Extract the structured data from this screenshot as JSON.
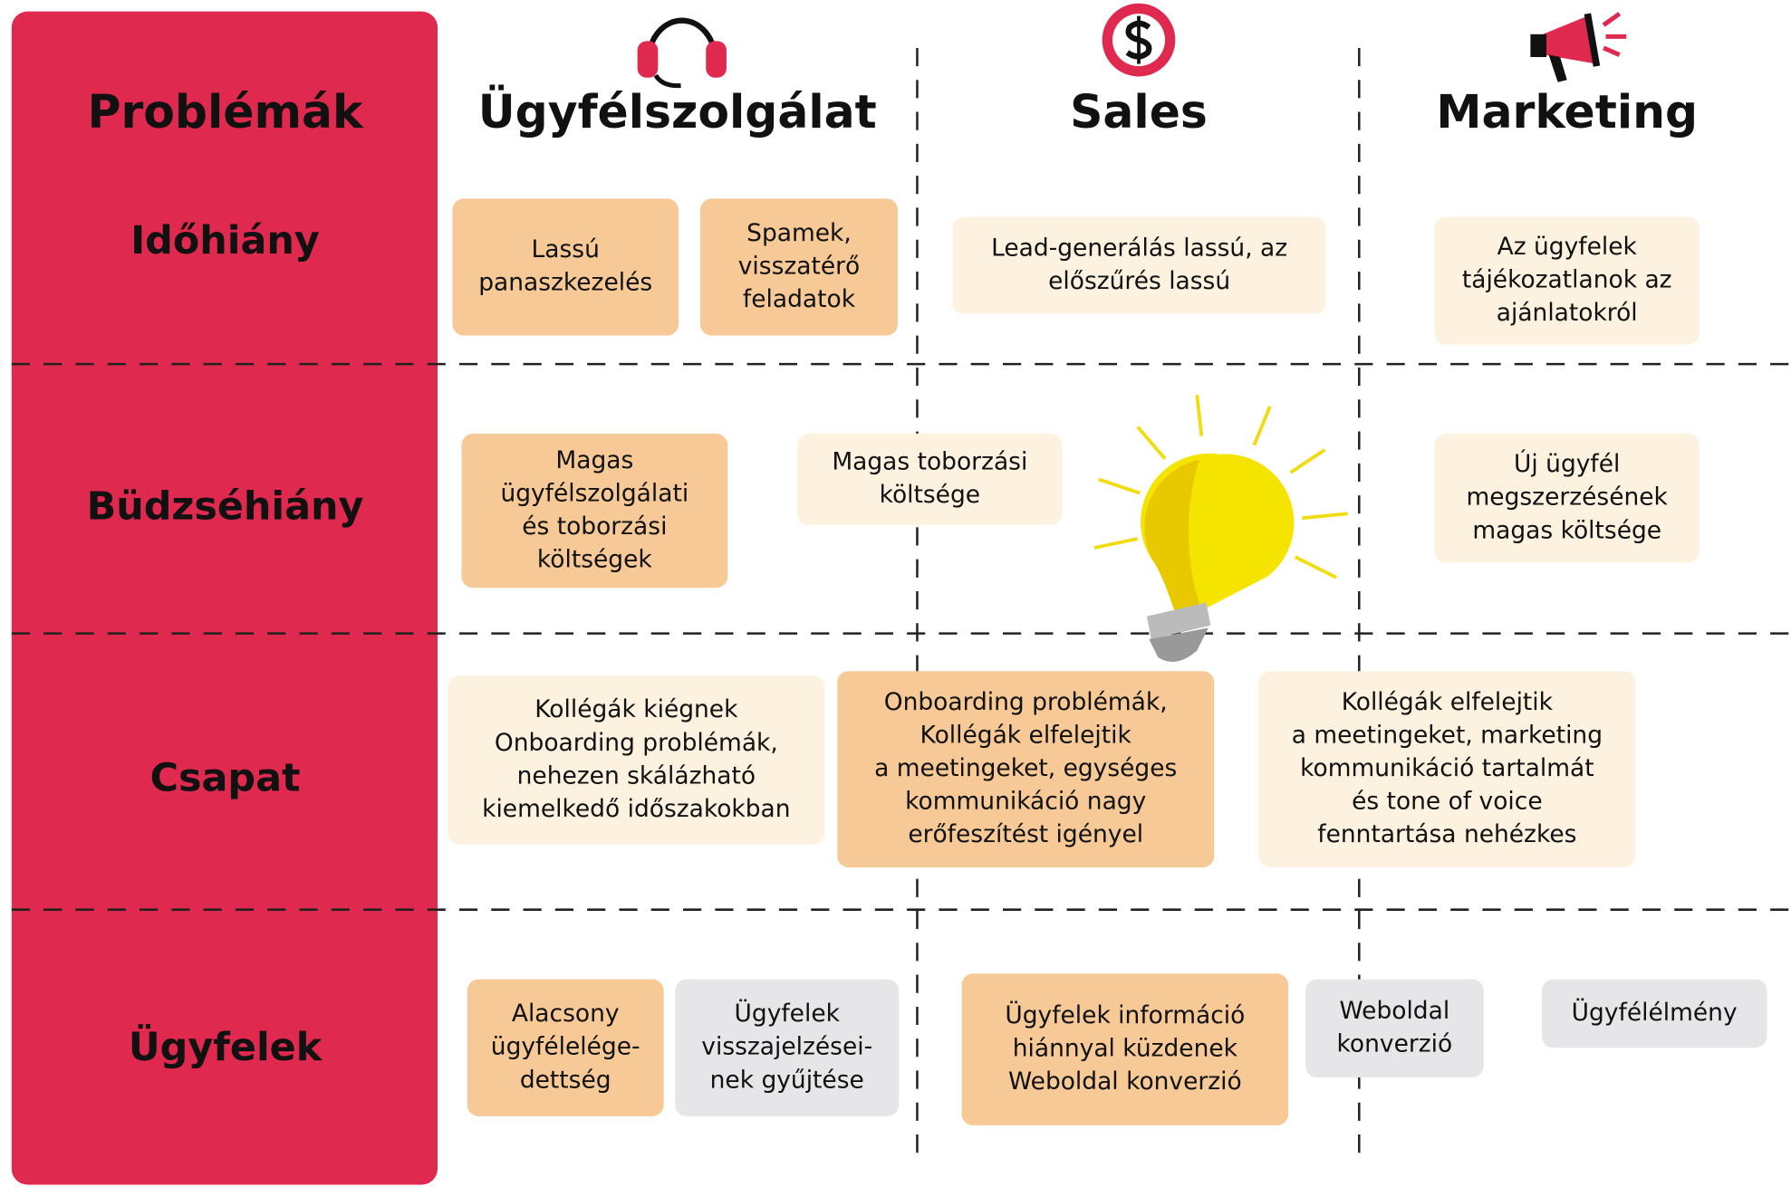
{
  "header": {
    "title": "Problémák"
  },
  "columns": [
    {
      "title": "Ügyfélszolgálat"
    },
    {
      "title": "Sales"
    },
    {
      "title": "Marketing"
    }
  ],
  "rows": [
    {
      "label": "Időhiány",
      "cards": [
        {
          "lines": [
            "Lassú",
            "panaszkezelés"
          ]
        },
        {
          "lines": [
            "Spamek,",
            "visszatérő",
            "feladatok"
          ]
        },
        {
          "lines": [
            "Lead-generálás lassú, az",
            "előszűrés lassú"
          ]
        },
        {
          "lines": [
            "Az ügyfelek",
            "tájékozatlanok az",
            "ajánlatokról"
          ]
        }
      ]
    },
    {
      "label": "Büdzséhiány",
      "cards": [
        {
          "lines": [
            "Magas",
            "ügyfélszolgálati",
            "és toborzási",
            "költségek"
          ]
        },
        {
          "lines": [
            "Magas toborzási",
            "költsége"
          ]
        },
        {
          "lines": [
            "Új ügyfél",
            "megszerzésének",
            "magas költsége"
          ]
        }
      ]
    },
    {
      "label": "Csapat",
      "cards": [
        {
          "lines": [
            "Kollégák kiégnek",
            "Onboarding problémák,",
            "nehezen skálázható",
            "kiemelkedő időszakokban"
          ]
        },
        {
          "lines": [
            "Onboarding problémák,",
            "Kollégák elfelejtik",
            "a meetingeket, egységes",
            "kommunikáció nagy",
            "erőfeszítést igényel"
          ]
        },
        {
          "lines": [
            "Kollégák elfelejtik",
            "a meetingeket, marketing",
            "kommunikáció tartalmát",
            "és tone of voice",
            "fenntartása nehézkes"
          ]
        }
      ]
    },
    {
      "label": "Ügyfelek",
      "cards": [
        {
          "lines": [
            "Alacsony",
            "ügyfélelége-",
            "dettség"
          ]
        },
        {
          "lines": [
            "Ügyfelek",
            "visszajelzései-",
            "nek gyűjtése"
          ]
        },
        {
          "lines": [
            "Ügyfelek információ",
            "hiánnyal küzdenek",
            "Weboldal konverzió"
          ]
        },
        {
          "lines": [
            "Weboldal",
            "konverzió"
          ]
        },
        {
          "lines": [
            "Ügyfélélmény"
          ]
        }
      ]
    }
  ]
}
